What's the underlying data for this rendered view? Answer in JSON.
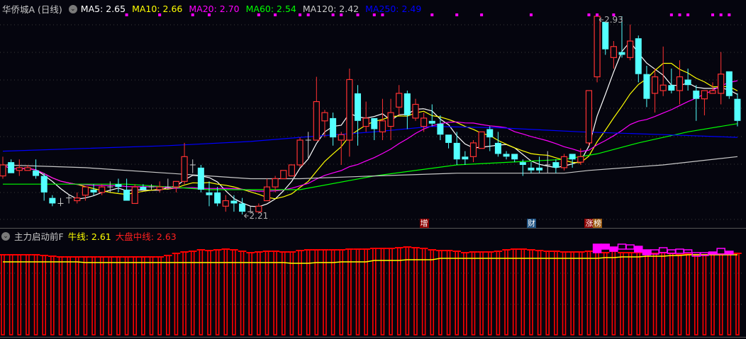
{
  "header": {
    "title": "华侨城A (日线)",
    "ma": [
      {
        "label": "MA5: 2.65",
        "color": "#ffffff"
      },
      {
        "label": "MA10: 2.66",
        "color": "#ffff00"
      },
      {
        "label": "MA20: 2.70",
        "color": "#ff00ff"
      },
      {
        "label": "MA60: 2.54",
        "color": "#00ff00"
      },
      {
        "label": "MA120: 2.42",
        "color": "#c8c8c8"
      },
      {
        "label": "MA250: 2.49",
        "color": "#0000ff"
      }
    ]
  },
  "indicator": {
    "name": "主力启动前F",
    "bull_line": "牛线: 2.61",
    "market_mid_line": "大盘中线: 2.63"
  },
  "markers": [
    {
      "text": "增",
      "index": 51,
      "bg": "#8b0000"
    },
    {
      "text": "财",
      "index": 64,
      "bg": "#1c4f7f"
    },
    {
      "text": "涨",
      "index": 71,
      "bg": "#8b0000"
    },
    {
      "text": "榜",
      "index": 72,
      "bg": "#9a5a12"
    }
  ],
  "colors": {
    "up": "#ff3232",
    "down": "#54ffff",
    "doji": "#c8c8c8",
    "signal": "#ff00ff"
  },
  "chart_data": [
    {
      "type": "candlestick",
      "title": "华侨城A (日线)",
      "ylim": [
        2.17,
        2.95
      ],
      "grid": true,
      "annotations": [
        {
          "text": "2.93",
          "index": 72,
          "kind": "high"
        },
        {
          "text": "2.21",
          "index": 29,
          "kind": "low"
        }
      ],
      "candles_ohlc": [
        [
          2.35,
          2.42,
          2.34,
          2.39
        ],
        [
          2.4,
          2.41,
          2.36,
          2.36
        ],
        [
          2.37,
          2.41,
          2.35,
          2.38
        ],
        [
          2.37,
          2.39,
          2.37,
          2.38
        ],
        [
          2.37,
          2.41,
          2.34,
          2.35
        ],
        [
          2.35,
          2.36,
          2.26,
          2.29
        ],
        [
          2.27,
          2.28,
          2.24,
          2.25
        ],
        [
          2.25,
          2.27,
          2.24,
          2.25
        ],
        [
          2.27,
          2.28,
          2.25,
          2.27
        ],
        [
          2.26,
          2.29,
          2.25,
          2.27
        ],
        [
          2.28,
          2.31,
          2.26,
          2.31
        ],
        [
          2.3,
          2.32,
          2.28,
          2.29
        ],
        [
          2.29,
          2.32,
          2.28,
          2.31
        ],
        [
          2.31,
          2.33,
          2.29,
          2.31
        ],
        [
          2.32,
          2.34,
          2.29,
          2.31
        ],
        [
          2.3,
          2.34,
          2.26,
          2.26
        ],
        [
          2.25,
          2.32,
          2.25,
          2.31
        ],
        [
          2.31,
          2.32,
          2.3,
          2.3
        ],
        [
          2.31,
          2.32,
          2.3,
          2.31
        ],
        [
          2.3,
          2.33,
          2.29,
          2.31
        ],
        [
          2.31,
          2.34,
          2.3,
          2.31
        ],
        [
          2.31,
          2.33,
          2.29,
          2.33
        ],
        [
          2.33,
          2.47,
          2.32,
          2.42
        ],
        [
          2.39,
          2.41,
          2.36,
          2.39
        ],
        [
          2.38,
          2.39,
          2.29,
          2.3
        ],
        [
          2.29,
          2.33,
          2.24,
          2.28
        ],
        [
          2.29,
          2.31,
          2.24,
          2.25
        ],
        [
          2.24,
          2.28,
          2.22,
          2.26
        ],
        [
          2.26,
          2.28,
          2.22,
          2.25
        ],
        [
          2.25,
          2.27,
          2.21,
          2.22
        ],
        [
          2.22,
          2.24,
          2.22,
          2.22
        ],
        [
          2.22,
          2.25,
          2.22,
          2.24
        ],
        [
          2.26,
          2.34,
          2.26,
          2.31
        ],
        [
          2.31,
          2.35,
          2.29,
          2.34
        ],
        [
          2.34,
          2.37,
          2.34,
          2.37
        ],
        [
          2.35,
          2.39,
          2.35,
          2.39
        ],
        [
          2.39,
          2.49,
          2.38,
          2.48
        ],
        [
          2.48,
          2.51,
          2.41,
          2.48
        ],
        [
          2.48,
          2.71,
          2.48,
          2.62
        ],
        [
          2.55,
          2.59,
          2.49,
          2.58
        ],
        [
          2.56,
          2.58,
          2.46,
          2.49
        ],
        [
          2.48,
          2.51,
          2.39,
          2.5
        ],
        [
          2.48,
          2.74,
          2.42,
          2.7
        ],
        [
          2.65,
          2.68,
          2.46,
          2.55
        ],
        [
          2.53,
          2.62,
          2.51,
          2.56
        ],
        [
          2.56,
          2.56,
          2.48,
          2.52
        ],
        [
          2.51,
          2.63,
          2.48,
          2.55
        ],
        [
          2.53,
          2.63,
          2.48,
          2.58
        ],
        [
          2.6,
          2.68,
          2.57,
          2.65
        ],
        [
          2.65,
          2.66,
          2.52,
          2.57
        ],
        [
          2.56,
          2.63,
          2.55,
          2.61
        ],
        [
          2.53,
          2.58,
          2.51,
          2.56
        ],
        [
          2.55,
          2.61,
          2.53,
          2.54
        ],
        [
          2.54,
          2.57,
          2.48,
          2.5
        ],
        [
          2.5,
          2.5,
          2.45,
          2.47
        ],
        [
          2.47,
          2.51,
          2.39,
          2.41
        ],
        [
          2.42,
          2.44,
          2.39,
          2.41
        ],
        [
          2.42,
          2.48,
          2.4,
          2.47
        ],
        [
          2.45,
          2.51,
          2.45,
          2.51
        ],
        [
          2.52,
          2.53,
          2.44,
          2.49
        ],
        [
          2.47,
          2.51,
          2.42,
          2.43
        ],
        [
          2.43,
          2.44,
          2.41,
          2.42
        ],
        [
          2.43,
          2.43,
          2.4,
          2.41
        ],
        [
          2.4,
          2.41,
          2.35,
          2.39
        ],
        [
          2.38,
          2.4,
          2.36,
          2.37
        ],
        [
          2.38,
          2.42,
          2.36,
          2.37
        ],
        [
          2.39,
          2.44,
          2.36,
          2.39
        ],
        [
          2.4,
          2.41,
          2.36,
          2.38
        ],
        [
          2.38,
          2.43,
          2.37,
          2.42
        ],
        [
          2.43,
          2.43,
          2.38,
          2.41
        ],
        [
          2.4,
          2.45,
          2.39,
          2.42
        ],
        [
          2.47,
          2.66,
          2.46,
          2.66
        ],
        [
          2.71,
          2.93,
          2.69,
          2.93
        ],
        [
          2.91,
          2.91,
          2.79,
          2.81
        ],
        [
          2.78,
          2.84,
          2.74,
          2.82
        ],
        [
          2.8,
          2.93,
          2.78,
          2.79
        ],
        [
          2.78,
          2.9,
          2.77,
          2.84
        ],
        [
          2.85,
          2.86,
          2.69,
          2.72
        ],
        [
          2.72,
          2.75,
          2.6,
          2.63
        ],
        [
          2.65,
          2.74,
          2.58,
          2.71
        ],
        [
          2.66,
          2.82,
          2.64,
          2.68
        ],
        [
          2.68,
          2.74,
          2.65,
          2.66
        ],
        [
          2.66,
          2.77,
          2.61,
          2.71
        ],
        [
          2.7,
          2.74,
          2.66,
          2.68
        ],
        [
          2.66,
          2.68,
          2.55,
          2.63
        ],
        [
          2.63,
          2.66,
          2.57,
          2.66
        ],
        [
          2.65,
          2.69,
          2.65,
          2.66
        ],
        [
          2.65,
          2.8,
          2.61,
          2.72
        ],
        [
          2.73,
          2.73,
          2.63,
          2.64
        ],
        [
          2.63,
          2.65,
          2.53,
          2.55
        ]
      ],
      "series": [
        {
          "name": "MA5",
          "color": "#ffffff",
          "period": 5
        },
        {
          "name": "MA10",
          "color": "#ffff00",
          "period": 10
        },
        {
          "name": "MA20",
          "color": "#ff00ff",
          "period": 20
        },
        {
          "name": "MA60",
          "color": "#00ff00",
          "points": [
            [
              0,
              2.32
            ],
            [
              15,
              2.32
            ],
            [
              25,
              2.3
            ],
            [
              36,
              2.3
            ],
            [
              45,
              2.35
            ],
            [
              55,
              2.39
            ],
            [
              68,
              2.41
            ],
            [
              72,
              2.43
            ],
            [
              77,
              2.47
            ],
            [
              83,
              2.51
            ],
            [
              89,
              2.54
            ]
          ]
        },
        {
          "name": "MA120",
          "color": "#c8c8c8",
          "points": [
            [
              0,
              2.39
            ],
            [
              10,
              2.38
            ],
            [
              20,
              2.36
            ],
            [
              30,
              2.34
            ],
            [
              36,
              2.34
            ],
            [
              45,
              2.35
            ],
            [
              55,
              2.36
            ],
            [
              68,
              2.36
            ],
            [
              71,
              2.37
            ],
            [
              80,
              2.39
            ],
            [
              89,
              2.42
            ]
          ]
        },
        {
          "name": "MA250",
          "color": "#0000ff",
          "points": [
            [
              0,
              2.44
            ],
            [
              10,
              2.45
            ],
            [
              20,
              2.46
            ],
            [
              30,
              2.475
            ],
            [
              36,
              2.49
            ],
            [
              45,
              2.51
            ],
            [
              52,
              2.53
            ],
            [
              60,
              2.525
            ],
            [
              70,
              2.51
            ],
            [
              80,
              2.5
            ],
            [
              89,
              2.49
            ]
          ]
        }
      ],
      "signal_indices": [
        15,
        19,
        23,
        25,
        31,
        33,
        36,
        37,
        40,
        41,
        43,
        45,
        46,
        52,
        55,
        58,
        64,
        71,
        72,
        74,
        81,
        82,
        83,
        86,
        87,
        88
      ]
    },
    {
      "type": "bar",
      "title": "主力启动前F",
      "market_mid_line": [
        2.61,
        2.61,
        2.61,
        2.61,
        2.61,
        2.6,
        2.59,
        2.58,
        2.58,
        2.58,
        2.58,
        2.58,
        2.58,
        2.58,
        2.58,
        2.58,
        2.58,
        2.58,
        2.58,
        2.58,
        2.6,
        2.63,
        2.65,
        2.66,
        2.68,
        2.67,
        2.68,
        2.69,
        2.68,
        2.66,
        2.64,
        2.65,
        2.66,
        2.66,
        2.65,
        2.65,
        2.67,
        2.68,
        2.68,
        2.68,
        2.68,
        2.68,
        2.69,
        2.69,
        2.69,
        2.7,
        2.7,
        2.7,
        2.71,
        2.72,
        2.71,
        2.7,
        2.68,
        2.67,
        2.67,
        2.66,
        2.64,
        2.65,
        2.65,
        2.65,
        2.66,
        2.68,
        2.69,
        2.69,
        2.68,
        2.67,
        2.66,
        2.66,
        2.65,
        2.65,
        2.65,
        2.66,
        2.66,
        2.64,
        2.66,
        2.64,
        2.64,
        2.64,
        2.64,
        2.63,
        2.64,
        2.63,
        2.61,
        2.62,
        2.61,
        2.61,
        2.62,
        2.62,
        2.62,
        2.63
      ],
      "bull_line": [
        2.51,
        2.51,
        2.51,
        2.51,
        2.51,
        2.51,
        2.51,
        2.51,
        2.51,
        2.51,
        2.5,
        2.5,
        2.5,
        2.5,
        2.5,
        2.5,
        2.5,
        2.5,
        2.5,
        2.5,
        2.5,
        2.5,
        2.5,
        2.5,
        2.5,
        2.5,
        2.5,
        2.5,
        2.5,
        2.5,
        2.5,
        2.5,
        2.5,
        2.5,
        2.5,
        2.49,
        2.49,
        2.49,
        2.5,
        2.5,
        2.5,
        2.51,
        2.51,
        2.51,
        2.51,
        2.53,
        2.53,
        2.53,
        2.53,
        2.54,
        2.54,
        2.54,
        2.54,
        2.56,
        2.56,
        2.56,
        2.56,
        2.56,
        2.56,
        2.56,
        2.56,
        2.56,
        2.56,
        2.56,
        2.56,
        2.56,
        2.56,
        2.56,
        2.56,
        2.56,
        2.56,
        2.56,
        2.56,
        2.57,
        2.57,
        2.58,
        2.58,
        2.58,
        2.59,
        2.59,
        2.59,
        2.6,
        2.6,
        2.61,
        2.61,
        2.61,
        2.61,
        2.61,
        2.61,
        2.61
      ],
      "boxes": [
        {
          "index": 72,
          "top": 2.76,
          "bottom": 2.64,
          "filled": true
        },
        {
          "index": 73,
          "top": 2.76,
          "bottom": 2.69,
          "filled": true
        },
        {
          "index": 74,
          "top": 2.72,
          "bottom": 2.66,
          "filled": true
        },
        {
          "index": 75,
          "top": 2.76,
          "bottom": 2.69,
          "filled": false
        },
        {
          "index": 76,
          "top": 2.75,
          "bottom": 2.69,
          "filled": false
        },
        {
          "index": 77,
          "top": 2.73,
          "bottom": 2.65,
          "filled": true
        },
        {
          "index": 78,
          "top": 2.68,
          "bottom": 2.61,
          "filled": true
        },
        {
          "index": 79,
          "top": 2.68,
          "bottom": 2.62,
          "filled": false
        },
        {
          "index": 80,
          "top": 2.71,
          "bottom": 2.64,
          "filled": false
        },
        {
          "index": 81,
          "top": 2.68,
          "bottom": 2.63,
          "filled": false
        },
        {
          "index": 82,
          "top": 2.69,
          "bottom": 2.63,
          "filled": false
        },
        {
          "index": 83,
          "top": 2.68,
          "bottom": 2.64,
          "filled": false
        },
        {
          "index": 84,
          "top": 2.64,
          "bottom": 2.59,
          "filled": false
        },
        {
          "index": 85,
          "top": 2.64,
          "bottom": 2.6,
          "filled": false
        },
        {
          "index": 86,
          "top": 2.65,
          "bottom": 2.62,
          "filled": true
        },
        {
          "index": 87,
          "top": 2.7,
          "bottom": 2.62,
          "filled": false
        },
        {
          "index": 88,
          "top": 2.66,
          "bottom": 2.62,
          "filled": true
        }
      ],
      "line_colors": {
        "bull_line": "#ffff00",
        "market_mid_line": "#ff0000",
        "boxes": "#ff00ff"
      }
    }
  ]
}
